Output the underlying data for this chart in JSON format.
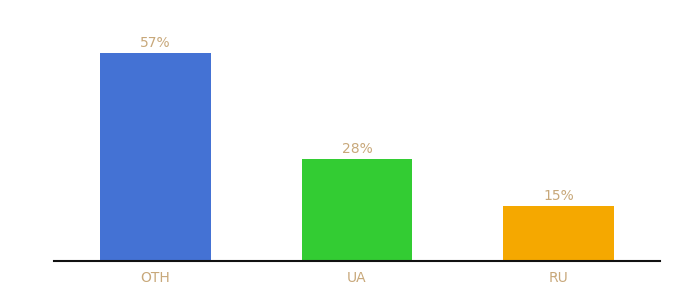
{
  "categories": [
    "OTH",
    "UA",
    "RU"
  ],
  "values": [
    57,
    28,
    15
  ],
  "bar_colors": [
    "#4472d4",
    "#33cc33",
    "#f5a800"
  ],
  "labels": [
    "57%",
    "28%",
    "15%"
  ],
  "ylim": [
    0,
    65
  ],
  "bar_width": 0.55,
  "label_color": "#c8a87a",
  "label_fontsize": 10,
  "tick_fontsize": 10,
  "tick_color": "#c8a87a",
  "background_color": "#ffffff",
  "bottom_spine_color": "#111111",
  "x_positions": [
    0,
    1,
    2
  ]
}
